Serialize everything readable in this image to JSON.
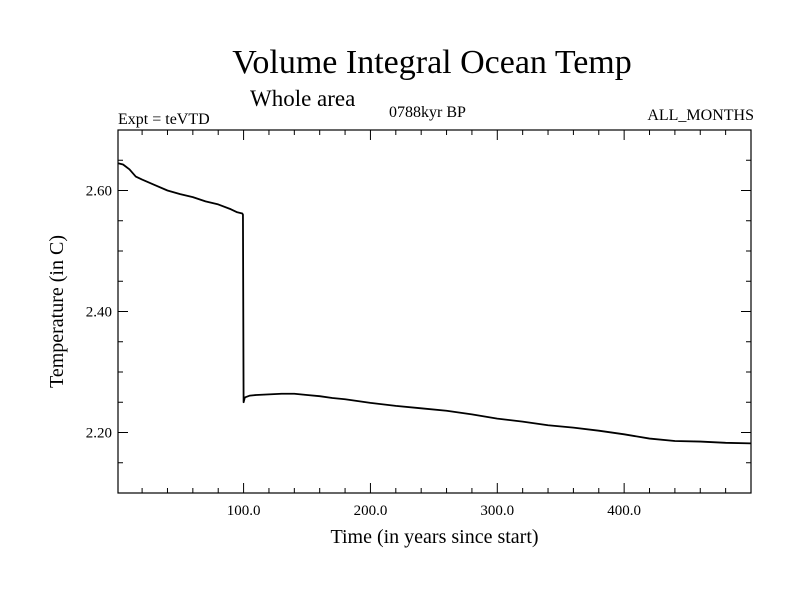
{
  "header": {
    "title": "Volume Integral Ocean Temp",
    "subtitle": "Whole area",
    "experiment": "Expt = teVTD",
    "period": "0788kyr BP",
    "months": "ALL_MONTHS"
  },
  "chart_data": {
    "type": "line",
    "title": "Volume Integral Ocean Temp",
    "subtitle": "Whole area",
    "xlabel": "Time (in years since start)",
    "ylabel": "Temperature (in C)",
    "xlim": [
      1,
      500
    ],
    "ylim": [
      2.1,
      2.7
    ],
    "x_major_ticks": [
      100,
      200,
      300,
      400
    ],
    "x_tick_labels": [
      "100.0",
      "200.0",
      "300.0",
      "400.0"
    ],
    "y_major_ticks": [
      2.2,
      2.4,
      2.6
    ],
    "y_tick_labels": [
      "2.20",
      "2.40",
      "2.60"
    ],
    "grid": false,
    "series": [
      {
        "color": "#000000",
        "x": [
          1,
          5,
          10,
          15,
          20,
          30,
          40,
          50,
          60,
          70,
          80,
          90,
          95,
          99,
          99.5,
          100,
          101,
          105,
          110,
          120,
          130,
          140,
          150,
          160,
          170,
          180,
          200,
          220,
          240,
          260,
          280,
          300,
          320,
          340,
          360,
          380,
          400,
          420,
          440,
          460,
          480,
          500
        ],
        "y": [
          2.645,
          2.643,
          2.635,
          2.623,
          2.618,
          2.609,
          2.6,
          2.594,
          2.589,
          2.582,
          2.577,
          2.569,
          2.564,
          2.562,
          2.56,
          2.25,
          2.258,
          2.261,
          2.262,
          2.263,
          2.264,
          2.264,
          2.262,
          2.26,
          2.257,
          2.255,
          2.249,
          2.244,
          2.24,
          2.236,
          2.23,
          2.223,
          2.218,
          2.212,
          2.208,
          2.203,
          2.197,
          2.19,
          2.186,
          2.185,
          2.183,
          2.182
        ]
      }
    ]
  }
}
